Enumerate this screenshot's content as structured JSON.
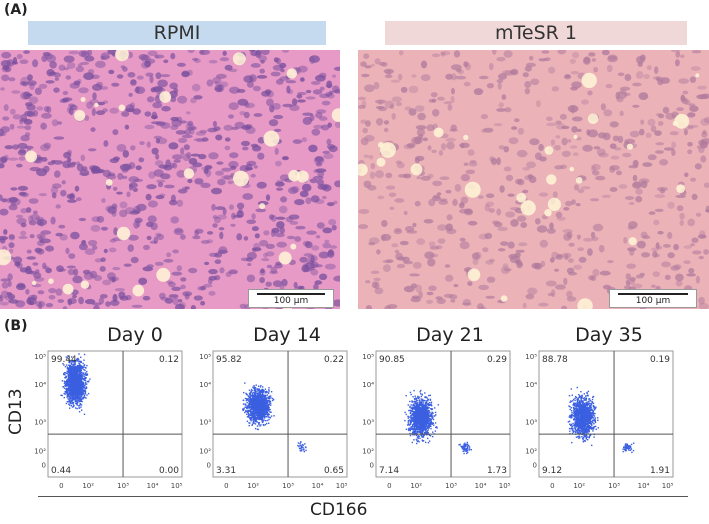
{
  "panel_a_label": "(A)",
  "panel_b_label": "(B)",
  "histology": [
    {
      "label": "RPMI",
      "label_color": "#c5d9ef",
      "scale_text": "100 µm",
      "stain_base": "#e79ac6",
      "nuclei_color": "#7a4f9e",
      "density": "high"
    },
    {
      "label": "mTeSR 1",
      "label_color": "#f0d8d8",
      "scale_text": "100 µm",
      "stain_base": "#ebb2b8",
      "nuclei_color": "#b07a9c",
      "density": "medium"
    }
  ],
  "flow": {
    "x_axis_title": "CD166",
    "y_axis_title": "CD13",
    "dot_color": "#3b5fe0",
    "x_tick_labels": [
      "0",
      "10²",
      "10³",
      "10⁴",
      "10⁵"
    ],
    "y_tick_labels": [
      "10⁵",
      "10⁴",
      "10³",
      "10²",
      "0"
    ],
    "plots": [
      {
        "day": "Day 0",
        "ul": "99.44",
        "ur": "0.12",
        "ll": "0.44",
        "lr": "0.00"
      },
      {
        "day": "Day 14",
        "ul": "95.82",
        "ur": "0.22",
        "ll": "3.31",
        "lr": "0.65"
      },
      {
        "day": "Day 21",
        "ul": "90.85",
        "ur": "0.29",
        "ll": "7.14",
        "lr": "1.73"
      },
      {
        "day": "Day 35",
        "ul": "88.78",
        "ur": "0.19",
        "ll": "9.12",
        "lr": "1.91"
      }
    ]
  }
}
